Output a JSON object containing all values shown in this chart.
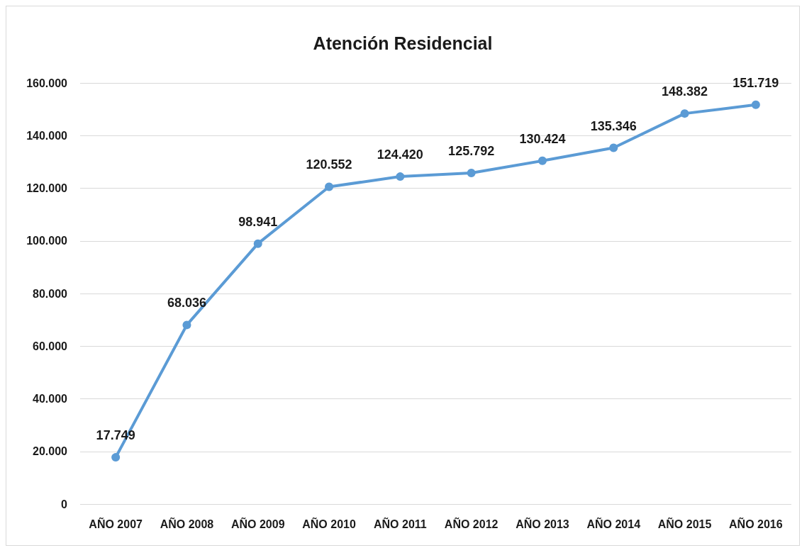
{
  "chart_data": {
    "type": "line",
    "title": "Atención Residencial",
    "categories": [
      "AÑO 2007",
      "AÑO 2008",
      "AÑO 2009",
      "AÑO 2010",
      "AÑO 2011",
      "AÑO 2012",
      "AÑO 2013",
      "AÑO 2014",
      "AÑO 2015",
      "AÑO 2016"
    ],
    "series": [
      {
        "color": "#5b9bd5",
        "values": [
          17749,
          68036,
          98941,
          120552,
          124420,
          125792,
          130424,
          135346,
          148382,
          151719
        ],
        "value_labels": [
          "17.749",
          "68.036",
          "98.941",
          "120.552",
          "124.420",
          "125.792",
          "130.424",
          "135.346",
          "148.382",
          "151.719"
        ]
      }
    ],
    "ylim": [
      0,
      160000
    ],
    "yticks": [
      0,
      {
        "value": 20000,
        "label": "20.000"
      },
      {
        "value": 40000,
        "label": "40.000"
      },
      {
        "value": 60000,
        "label": "60.000"
      },
      {
        "value": 80000,
        "label": "80.000"
      },
      {
        "value": 100000,
        "label": "100.000"
      },
      {
        "value": 120000,
        "label": "120.000"
      },
      {
        "value": 140000,
        "label": "140.000"
      },
      {
        "value": 160000,
        "label": "160.000"
      }
    ],
    "grid": "y",
    "marker": "circle",
    "line_style": "solid"
  }
}
